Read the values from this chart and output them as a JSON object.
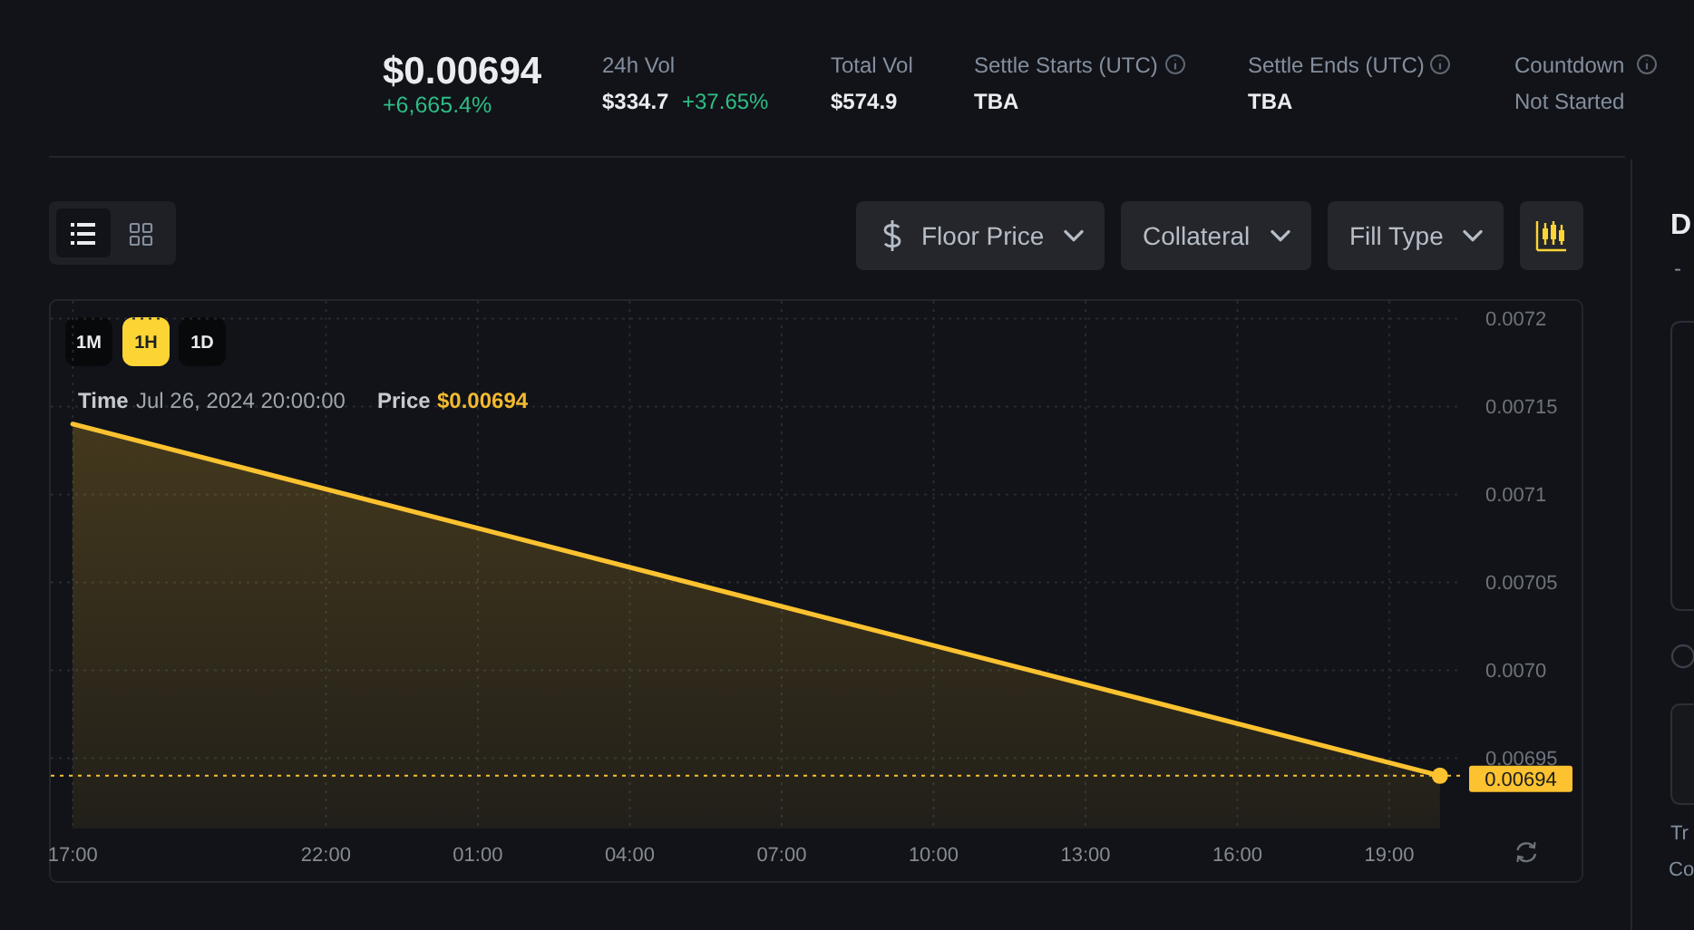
{
  "chart_data": {
    "type": "area",
    "annotations": [
      "$0.00694",
      "+6,665.4%",
      "24h Vol",
      "$334.7",
      "+37.65%",
      "Total Vol",
      "$574.9",
      "Settle Starts (UTC)",
      "TBA",
      "Settle Ends (UTC)",
      "TBA",
      "Countdown",
      "Not Started",
      "Floor Price",
      "Collateral",
      "Fill Type",
      "1M",
      "1H",
      "1D",
      "Time",
      "Jul 26, 2024 20:00:00",
      "Price",
      "$0.00694",
      "D",
      "-",
      "Tr",
      "Co"
    ],
    "series": [
      {
        "color": "#fcc230",
        "x": [
          "2024-07-25T17:00",
          "2024-07-26T20:00"
        ],
        "values": [
          0.00714,
          0.00694
        ]
      },
      {
        "type": "scatter",
        "color": "#fcc230",
        "marker": "circle",
        "x": [
          "2024-07-26T20:00"
        ],
        "values": [
          0.00694
        ]
      }
    ],
    "xlim": [
      "2024-07-25T16:34",
      "2024-07-26T20:26"
    ],
    "xticks": [
      {
        "value": "2024-07-25T17:00",
        "label": "17:00"
      },
      {
        "value": "2024-07-25T22:00",
        "label": "22:00"
      },
      {
        "value": "2024-07-26T01:00",
        "label": "01:00"
      },
      {
        "value": "2024-07-26T04:00",
        "label": "04:00"
      },
      {
        "value": "2024-07-26T07:00",
        "label": "07:00"
      },
      {
        "value": "2024-07-26T10:00",
        "label": "10:00"
      },
      {
        "value": "2024-07-26T13:00",
        "label": "13:00"
      },
      {
        "value": "2024-07-26T16:00",
        "label": "16:00"
      },
      {
        "value": "2024-07-26T19:00",
        "label": "19:00"
      }
    ],
    "ylim": [
      0.00691,
      0.00721
    ],
    "yticks": [
      0.00695,
      {
        "value": 0.007,
        "label": "0.0070"
      },
      0.00705,
      0.0071,
      0.00715,
      0.0072
    ],
    "grid": true,
    "ref_lines": [
      {
        "axis": "y",
        "value": 0.00694,
        "label": "0.00694",
        "color": "#fcc230",
        "line_style": "dotted"
      }
    ]
  }
}
